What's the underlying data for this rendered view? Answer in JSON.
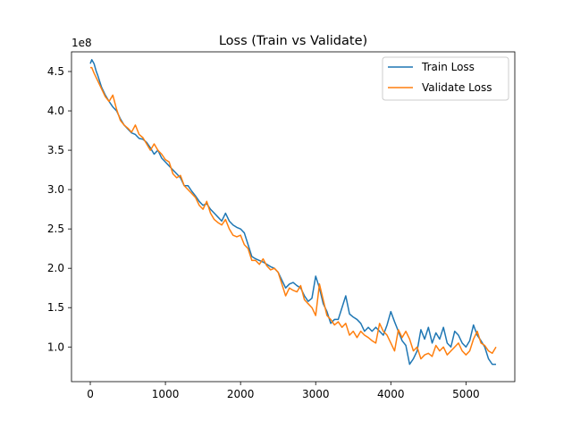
{
  "chart_data": {
    "type": "line",
    "title": "Loss (Train vs Validate)",
    "xlabel": "",
    "ylabel": "",
    "y_multiplier_label": "1e8",
    "xlim": [
      -250,
      5650
    ],
    "ylim": [
      0.56,
      4.75
    ],
    "x_ticks": [
      0,
      1000,
      2000,
      3000,
      4000,
      5000
    ],
    "x_tick_labels": [
      "0",
      "1000",
      "2000",
      "3000",
      "4000",
      "5000"
    ],
    "y_ticks": [
      1.0,
      1.5,
      2.0,
      2.5,
      3.0,
      3.5,
      4.0,
      4.5
    ],
    "y_tick_labels": [
      "1.0",
      "1.5",
      "2.0",
      "2.5",
      "3.0",
      "3.5",
      "4.0",
      "4.5"
    ],
    "grid": false,
    "legend_position": "top-right",
    "series": [
      {
        "name": "Train Loss",
        "color": "#1f77b4",
        "x": [
          0,
          20,
          50,
          80,
          100,
          150,
          200,
          250,
          300,
          350,
          400,
          450,
          500,
          550,
          600,
          650,
          700,
          750,
          800,
          850,
          900,
          950,
          1000,
          1050,
          1100,
          1150,
          1200,
          1250,
          1300,
          1350,
          1400,
          1450,
          1500,
          1550,
          1600,
          1650,
          1700,
          1750,
          1800,
          1850,
          1900,
          1950,
          2000,
          2050,
          2100,
          2150,
          2200,
          2250,
          2300,
          2350,
          2400,
          2450,
          2500,
          2550,
          2600,
          2650,
          2700,
          2750,
          2800,
          2850,
          2900,
          2950,
          3000,
          3050,
          3100,
          3150,
          3200,
          3250,
          3300,
          3350,
          3400,
          3450,
          3500,
          3550,
          3600,
          3650,
          3700,
          3750,
          3800,
          3850,
          3900,
          3950,
          4000,
          4050,
          4100,
          4150,
          4200,
          4250,
          4300,
          4350,
          4400,
          4450,
          4500,
          4550,
          4600,
          4650,
          4700,
          4750,
          4800,
          4850,
          4900,
          4950,
          5000,
          5050,
          5100,
          5150,
          5200,
          5250,
          5300,
          5350,
          5400
        ],
        "y": [
          4.6,
          4.65,
          4.6,
          4.5,
          4.45,
          4.3,
          4.2,
          4.12,
          4.05,
          4.0,
          3.9,
          3.82,
          3.77,
          3.72,
          3.7,
          3.65,
          3.64,
          3.6,
          3.53,
          3.45,
          3.5,
          3.4,
          3.35,
          3.3,
          3.25,
          3.2,
          3.15,
          3.05,
          3.05,
          2.98,
          2.92,
          2.85,
          2.8,
          2.82,
          2.75,
          2.7,
          2.65,
          2.6,
          2.7,
          2.6,
          2.55,
          2.52,
          2.5,
          2.45,
          2.3,
          2.15,
          2.12,
          2.1,
          2.08,
          2.05,
          2.02,
          2.0,
          1.95,
          1.85,
          1.75,
          1.8,
          1.82,
          1.78,
          1.75,
          1.65,
          1.58,
          1.62,
          1.9,
          1.75,
          1.55,
          1.45,
          1.3,
          1.35,
          1.35,
          1.5,
          1.65,
          1.42,
          1.38,
          1.35,
          1.3,
          1.2,
          1.25,
          1.2,
          1.25,
          1.2,
          1.15,
          1.28,
          1.45,
          1.32,
          1.2,
          1.08,
          1.02,
          0.78,
          0.85,
          0.95,
          1.22,
          1.1,
          1.25,
          1.05,
          1.18,
          1.1,
          1.25,
          1.05,
          1.0,
          1.2,
          1.15,
          1.05,
          1.0,
          1.08,
          1.28,
          1.15,
          1.08,
          1.0,
          0.85,
          0.78,
          0.78
        ]
      },
      {
        "name": "Validate Loss",
        "color": "#ff7f0e",
        "x": [
          0,
          20,
          50,
          80,
          100,
          150,
          200,
          250,
          300,
          350,
          400,
          450,
          500,
          550,
          600,
          650,
          700,
          750,
          800,
          850,
          900,
          950,
          1000,
          1050,
          1100,
          1150,
          1200,
          1250,
          1300,
          1350,
          1400,
          1450,
          1500,
          1550,
          1600,
          1650,
          1700,
          1750,
          1800,
          1850,
          1900,
          1950,
          2000,
          2050,
          2100,
          2150,
          2200,
          2250,
          2300,
          2350,
          2400,
          2450,
          2500,
          2550,
          2600,
          2650,
          2700,
          2750,
          2800,
          2850,
          2900,
          2950,
          3000,
          3050,
          3100,
          3150,
          3200,
          3250,
          3300,
          3350,
          3400,
          3450,
          3500,
          3550,
          3600,
          3650,
          3700,
          3750,
          3800,
          3850,
          3900,
          3950,
          4000,
          4050,
          4100,
          4150,
          4200,
          4250,
          4300,
          4350,
          4400,
          4450,
          4500,
          4550,
          4600,
          4650,
          4700,
          4750,
          4800,
          4850,
          4900,
          4950,
          5000,
          5050,
          5100,
          5150,
          5200,
          5250,
          5300,
          5350,
          5400
        ],
        "y": [
          4.55,
          4.55,
          4.48,
          4.42,
          4.38,
          4.28,
          4.18,
          4.12,
          4.2,
          4.02,
          3.88,
          3.82,
          3.78,
          3.73,
          3.82,
          3.7,
          3.66,
          3.58,
          3.5,
          3.58,
          3.5,
          3.45,
          3.38,
          3.35,
          3.2,
          3.15,
          3.18,
          3.05,
          3.0,
          2.95,
          2.9,
          2.8,
          2.75,
          2.85,
          2.7,
          2.62,
          2.58,
          2.55,
          2.62,
          2.5,
          2.42,
          2.4,
          2.42,
          2.3,
          2.25,
          2.1,
          2.1,
          2.05,
          2.12,
          2.03,
          1.98,
          2.0,
          1.95,
          1.8,
          1.65,
          1.75,
          1.72,
          1.7,
          1.78,
          1.6,
          1.55,
          1.5,
          1.4,
          1.8,
          1.6,
          1.4,
          1.35,
          1.28,
          1.32,
          1.25,
          1.3,
          1.15,
          1.2,
          1.12,
          1.2,
          1.15,
          1.12,
          1.08,
          1.05,
          1.3,
          1.2,
          1.15,
          1.05,
          0.95,
          1.22,
          1.12,
          1.2,
          1.1,
          0.95,
          1.0,
          0.85,
          0.9,
          0.92,
          0.88,
          1.02,
          0.95,
          1.0,
          0.9,
          0.95,
          1.0,
          1.05,
          0.95,
          0.9,
          0.95,
          1.1,
          1.2,
          1.05,
          1.02,
          0.95,
          0.92,
          1.0
        ]
      }
    ]
  }
}
